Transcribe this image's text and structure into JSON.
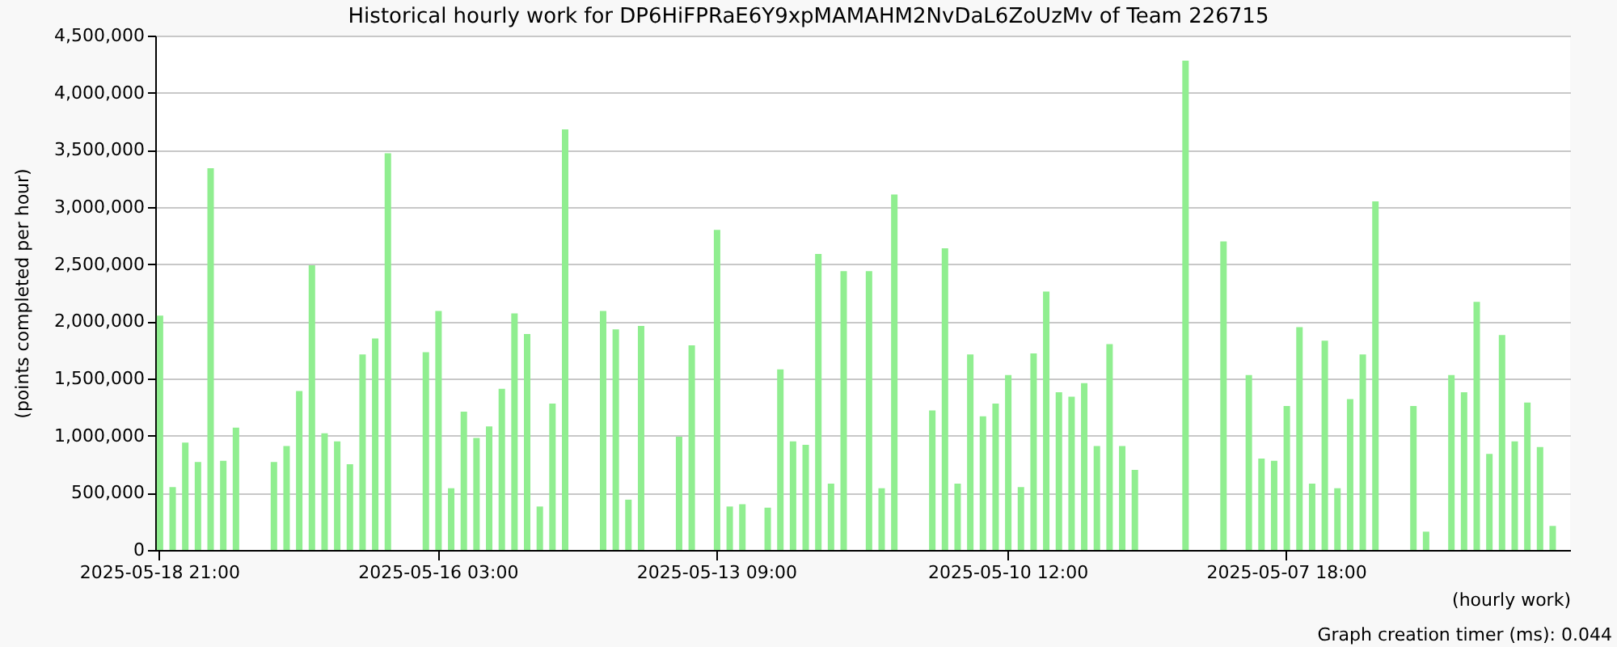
{
  "chart_data": {
    "type": "bar",
    "title": "Historical hourly work for DP6HiFPRaE6Y9xpMAMAHM2NvDaL6ZoUzMv of Team 226715",
    "xlabel": "(hourly work)",
    "ylabel": "(points completed per hour)",
    "annotations": [
      "Graph creation timer (ms): 0.044"
    ],
    "categories": [
      "2025-05-18 21:00",
      null,
      null,
      null,
      null,
      null,
      null,
      null,
      null,
      null,
      null,
      null,
      null,
      null,
      null,
      null,
      null,
      null,
      null,
      null,
      null,
      null,
      "2025-05-16 03:00",
      null,
      null,
      null,
      null,
      null,
      null,
      null,
      null,
      null,
      null,
      null,
      null,
      null,
      null,
      null,
      null,
      null,
      null,
      null,
      null,
      null,
      "2025-05-13 09:00",
      null,
      null,
      null,
      null,
      null,
      null,
      null,
      null,
      null,
      null,
      null,
      null,
      null,
      null,
      null,
      null,
      null,
      null,
      null,
      null,
      null,
      null,
      "2025-05-10 12:00",
      null,
      null,
      null,
      null,
      null,
      null,
      null,
      null,
      null,
      null,
      null,
      null,
      null,
      null,
      null,
      null,
      null,
      null,
      null,
      null,
      null,
      "2025-05-07 18:00",
      null,
      null,
      null,
      null,
      null,
      null,
      null,
      null,
      null,
      null,
      null,
      null,
      null,
      null,
      null,
      null,
      null,
      null,
      null,
      null,
      null,
      null
    ],
    "values": [
      2050000,
      550000,
      940000,
      770000,
      3340000,
      780000,
      1070000,
      null,
      null,
      770000,
      910000,
      1390000,
      2490000,
      1020000,
      950000,
      750000,
      1710000,
      1850000,
      3470000,
      null,
      null,
      1730000,
      2090000,
      540000,
      1210000,
      980000,
      1080000,
      1410000,
      2070000,
      1890000,
      380000,
      1280000,
      3680000,
      null,
      null,
      2090000,
      1930000,
      440000,
      1960000,
      null,
      null,
      990000,
      1790000,
      null,
      2800000,
      380000,
      400000,
      null,
      370000,
      1580000,
      950000,
      920000,
      2590000,
      580000,
      2440000,
      null,
      2440000,
      540000,
      3110000,
      null,
      null,
      1220000,
      2640000,
      580000,
      1710000,
      1170000,
      1280000,
      1530000,
      550000,
      1720000,
      2260000,
      1380000,
      1340000,
      1460000,
      910000,
      1800000,
      910000,
      700000,
      null,
      null,
      null,
      4280000,
      null,
      null,
      2700000,
      null,
      1530000,
      800000,
      780000,
      1260000,
      1950000,
      580000,
      1830000,
      540000,
      1320000,
      1710000,
      3050000,
      null,
      null,
      1260000,
      160000,
      null,
      1530000,
      1380000,
      2170000,
      840000,
      1880000,
      950000,
      1290000,
      900000,
      210000,
      null
    ],
    "color": "#90ee90",
    "ylim": [
      0,
      4500000
    ],
    "yticks": [
      0,
      {
        "value": 500000,
        "label": "500,000"
      },
      {
        "value": 1000000,
        "label": "1,000,000"
      },
      {
        "value": 1500000,
        "label": "1,500,000"
      },
      {
        "value": 2000000,
        "label": "2,000,000"
      },
      {
        "value": 2500000,
        "label": "2,500,000"
      },
      {
        "value": 3000000,
        "label": "3,000,000"
      },
      {
        "value": 3500000,
        "label": "3,500,000"
      },
      {
        "value": 4000000,
        "label": "4,000,000"
      },
      {
        "value": 4500000,
        "label": "4,500,000"
      }
    ],
    "grid": "y"
  }
}
